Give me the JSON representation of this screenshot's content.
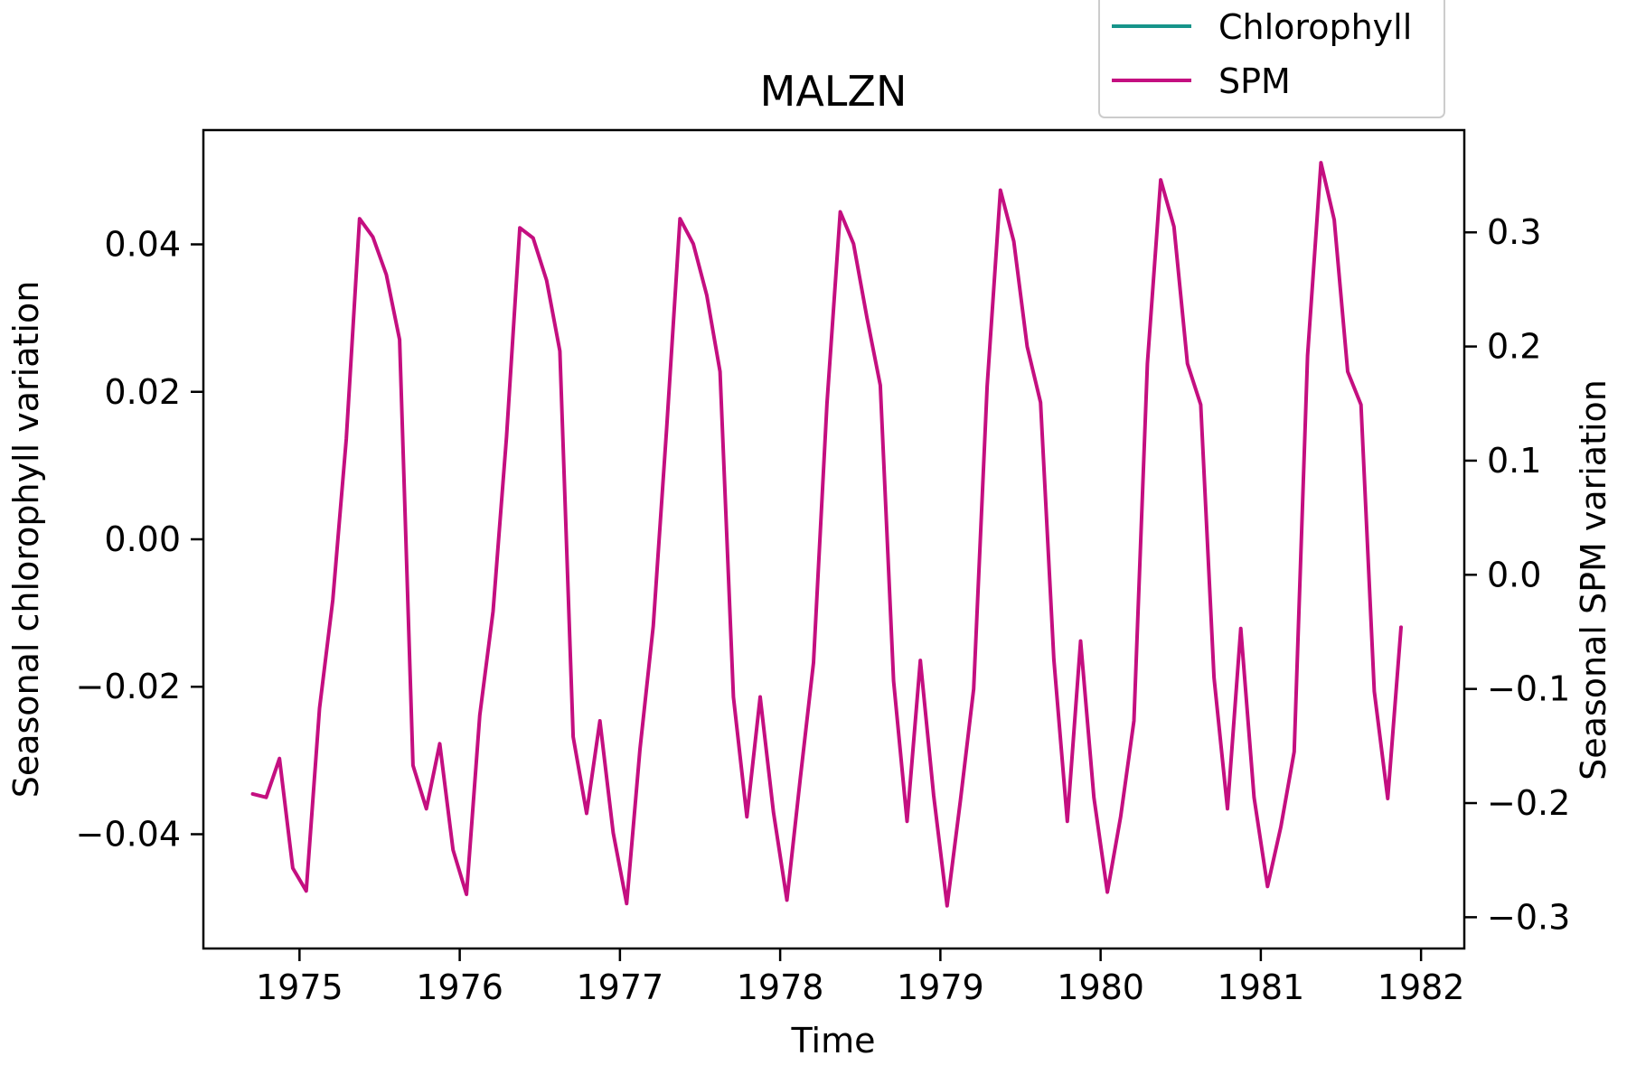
{
  "chart_data": {
    "type": "line",
    "title": "MALZN",
    "xlabel": "Time",
    "ylabel_left": "Seasonal chlorophyll variation",
    "ylabel_right": "Seasonal SPM variation",
    "xlim": [
      1974.4,
      1982.27
    ],
    "ylim_left": [
      -0.0555,
      0.0555
    ],
    "ylim_right": [
      -0.3274,
      0.3896
    ],
    "x_ticks": [
      1975,
      1976,
      1977,
      1978,
      1979,
      1980,
      1981,
      1982
    ],
    "x_tick_labels": [
      "1975",
      "1976",
      "1977",
      "1978",
      "1979",
      "1980",
      "1981",
      "1982"
    ],
    "y_left_ticks": [
      0.04,
      0.02,
      0.0,
      -0.02,
      -0.04
    ],
    "y_left_tick_labels": [
      "0.04",
      "0.02",
      "0.00",
      "−0.02",
      "−0.04"
    ],
    "y_right_ticks": [
      0.3,
      0.2,
      0.1,
      0.0,
      -0.1,
      -0.2,
      -0.3
    ],
    "y_right_tick_labels": [
      "0.3",
      "0.2",
      "0.1",
      "0.0",
      "−0.1",
      "−0.2",
      "−0.3"
    ],
    "grid": false,
    "legend_position": "top-right, above plot",
    "series": [
      {
        "name": "Chlorophyll",
        "axis": "left",
        "color": "#16948a",
        "x": [],
        "y": []
      },
      {
        "name": "SPM",
        "axis": "right",
        "color": "#c40f80",
        "x": [
          1974.708,
          1974.792,
          1974.875,
          1974.958,
          1975.042,
          1975.125,
          1975.208,
          1975.292,
          1975.375,
          1975.458,
          1975.542,
          1975.625,
          1975.708,
          1975.792,
          1975.875,
          1975.958,
          1976.042,
          1976.125,
          1976.208,
          1976.292,
          1976.375,
          1976.458,
          1976.542,
          1976.625,
          1976.708,
          1976.792,
          1976.875,
          1976.958,
          1977.042,
          1977.125,
          1977.208,
          1977.292,
          1977.375,
          1977.458,
          1977.542,
          1977.625,
          1977.708,
          1977.792,
          1977.875,
          1977.958,
          1978.042,
          1978.125,
          1978.208,
          1978.292,
          1978.375,
          1978.458,
          1978.542,
          1978.625,
          1978.708,
          1978.792,
          1978.875,
          1978.958,
          1979.042,
          1979.125,
          1979.208,
          1979.292,
          1979.375,
          1979.458,
          1979.542,
          1979.625,
          1979.708,
          1979.792,
          1979.875,
          1979.958,
          1980.042,
          1980.125,
          1980.208,
          1980.292,
          1980.375,
          1980.458,
          1980.542,
          1980.625,
          1980.708,
          1980.792,
          1980.875,
          1980.958,
          1981.042,
          1981.125,
          1981.208,
          1981.292,
          1981.375,
          1981.458,
          1981.542,
          1981.625,
          1981.708,
          1981.792,
          1981.875
        ],
        "y": [
          -0.192,
          -0.195,
          -0.161,
          -0.257,
          -0.277,
          -0.117,
          -0.022,
          0.119,
          0.312,
          0.296,
          0.263,
          0.206,
          -0.167,
          -0.205,
          -0.148,
          -0.241,
          -0.28,
          -0.123,
          -0.032,
          0.121,
          0.304,
          0.295,
          0.258,
          0.196,
          -0.142,
          -0.209,
          -0.128,
          -0.226,
          -0.288,
          -0.153,
          -0.045,
          0.129,
          0.312,
          0.29,
          0.245,
          0.178,
          -0.107,
          -0.212,
          -0.107,
          -0.208,
          -0.285,
          -0.179,
          -0.077,
          0.15,
          0.318,
          0.29,
          0.225,
          0.166,
          -0.093,
          -0.216,
          -0.075,
          -0.193,
          -0.29,
          -0.198,
          -0.1,
          0.165,
          0.337,
          0.292,
          0.2,
          0.151,
          -0.074,
          -0.216,
          -0.058,
          -0.195,
          -0.278,
          -0.212,
          -0.128,
          0.185,
          0.346,
          0.305,
          0.185,
          0.149,
          -0.09,
          -0.205,
          -0.047,
          -0.195,
          -0.273,
          -0.221,
          -0.155,
          0.192,
          0.361,
          0.311,
          0.178,
          0.149,
          -0.102,
          -0.196,
          -0.046
        ]
      }
    ]
  }
}
